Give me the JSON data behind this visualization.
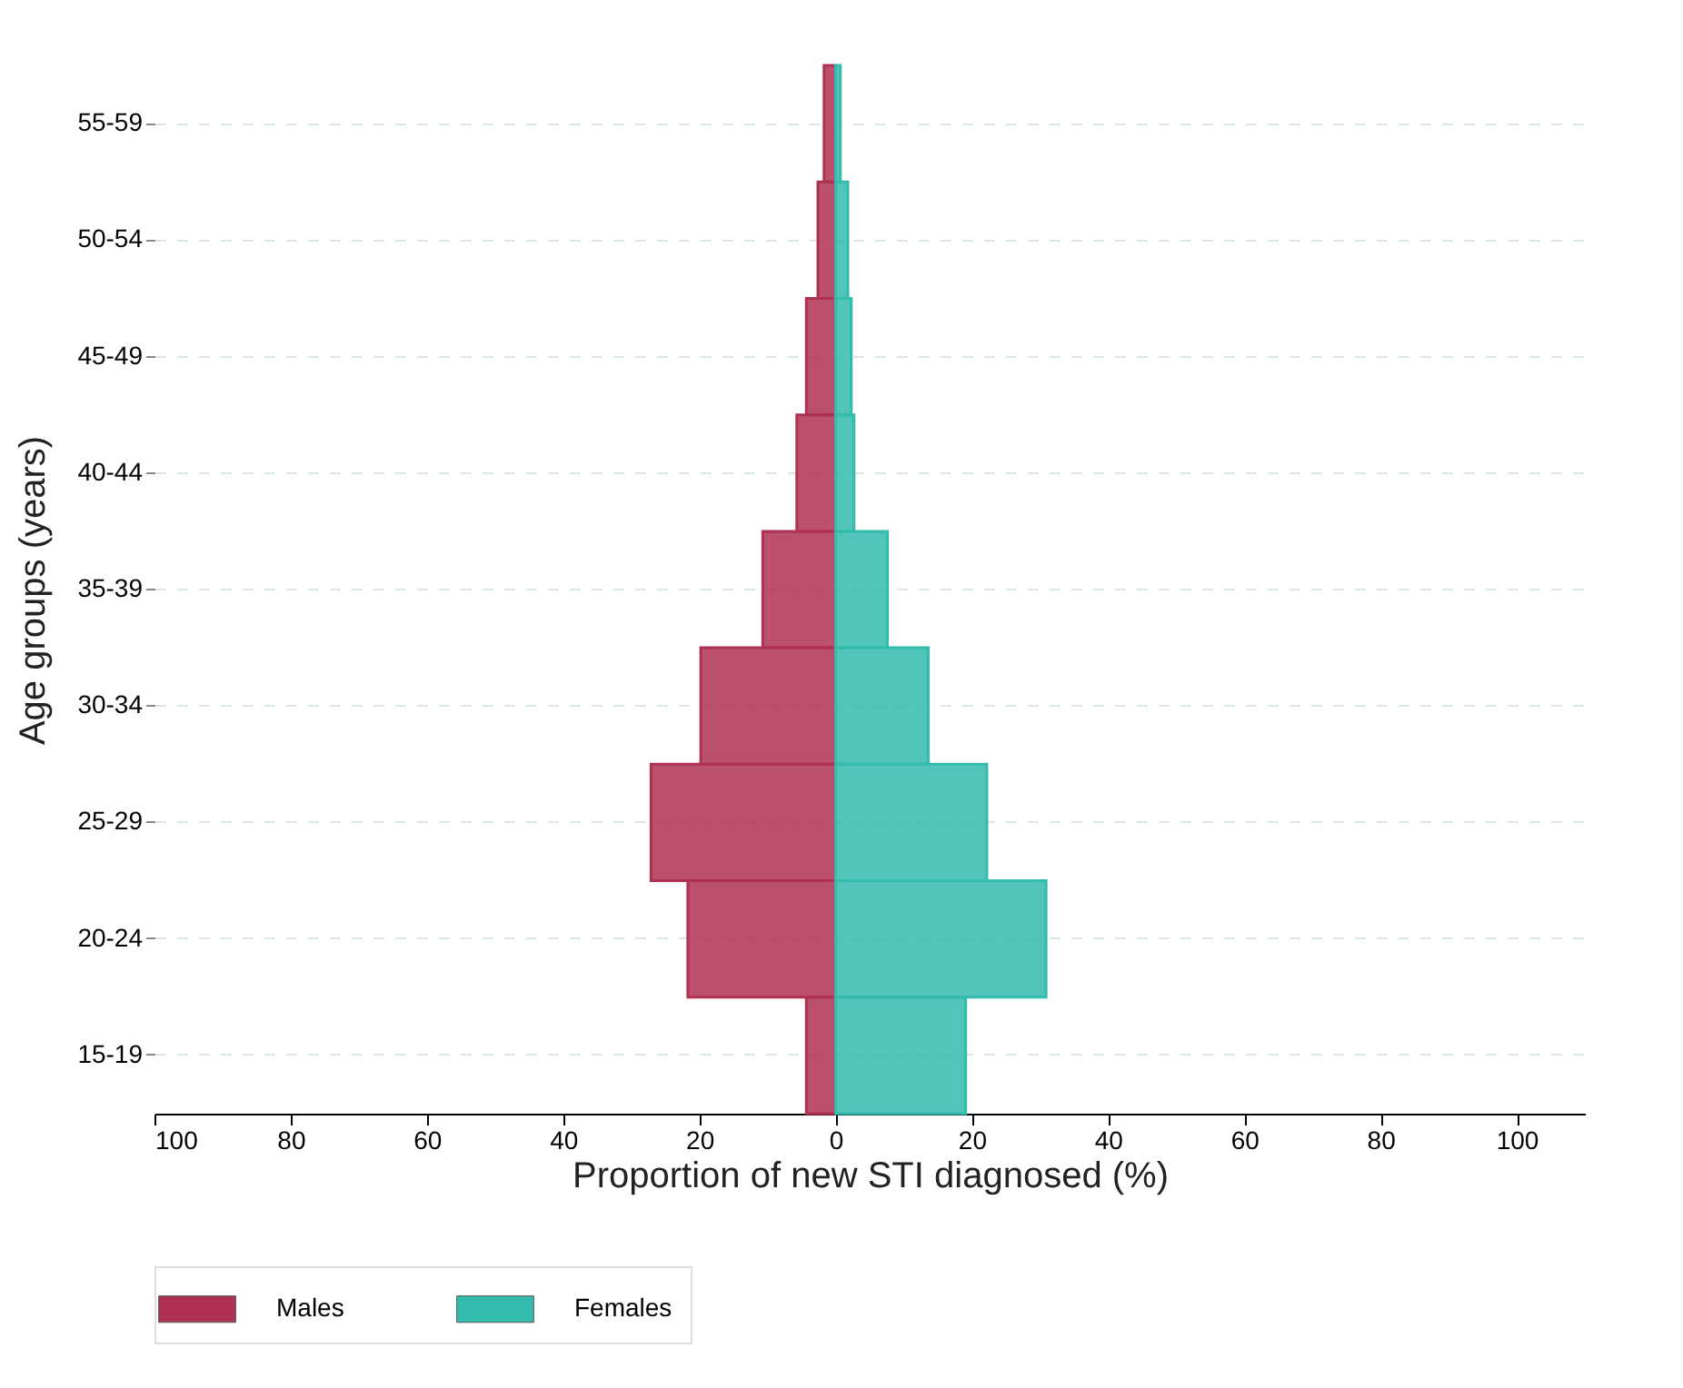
{
  "chart_data": {
    "type": "bar",
    "orientation": "horizontal",
    "xlabel": "Proportion of new STI diagnosed (%)",
    "ylabel": "Age groups (years)",
    "categories": [
      "55-59",
      "50-54",
      "45-49",
      "40-44",
      "35-39",
      "30-34",
      "25-29",
      "20-24",
      "15-19"
    ],
    "series": [
      {
        "name": "Males",
        "color": "#ae3152",
        "values": [
          -1.7,
          -2.6,
          -4.3,
          -5.7,
          -10.7,
          -19.8,
          -27.1,
          -21.7,
          -4.3
        ]
      },
      {
        "name": "Females",
        "color": "#33bbad",
        "values": [
          0.7,
          1.8,
          2.3,
          2.7,
          7.6,
          13.6,
          22.2,
          30.9,
          19.1
        ]
      }
    ],
    "xlim": [
      -100,
      110
    ],
    "xticks": [
      {
        "value": -100,
        "label": "100"
      },
      {
        "value": -80,
        "label": "80"
      },
      {
        "value": -60,
        "label": "60"
      },
      {
        "value": -40,
        "label": "40"
      },
      {
        "value": -20,
        "label": "20"
      },
      0,
      20,
      40,
      60,
      80,
      100
    ],
    "grid": "y",
    "legend": "bottom"
  }
}
